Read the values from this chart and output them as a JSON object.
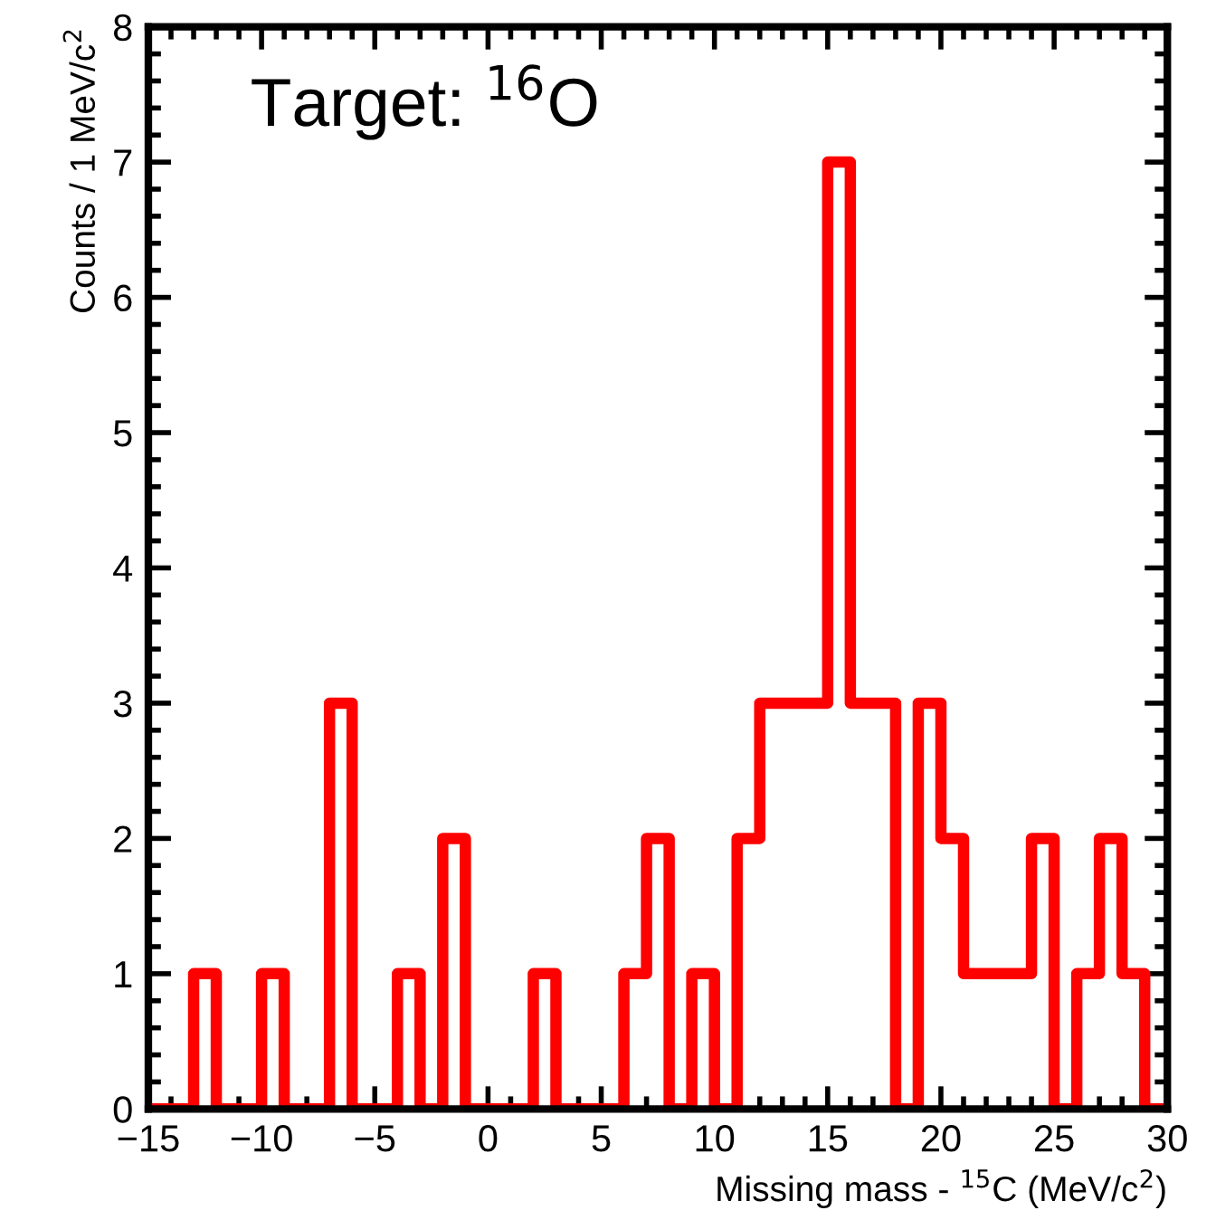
{
  "chart_data": {
    "type": "histogram",
    "xlabel": "Missing mass - $^{15}$C (MeV/c$^{2}$)",
    "ylabel": "Counts / 1 MeV/c$^{2}$",
    "annotations": [
      "Target: $^{16}$O"
    ],
    "bins": [
      -15,
      -14,
      -13,
      -12,
      -11,
      -10,
      -9,
      -8,
      -7,
      -6,
      -5,
      -4,
      -3,
      -2,
      -1,
      0,
      1,
      2,
      3,
      4,
      5,
      6,
      7,
      8,
      9,
      10,
      11,
      12,
      13,
      14,
      15,
      16,
      17,
      18,
      19,
      20,
      21,
      22,
      23,
      24,
      25,
      26,
      27,
      28,
      29,
      30
    ],
    "values": [
      0,
      0,
      1,
      0,
      0,
      1,
      0,
      0,
      3,
      0,
      0,
      1,
      0,
      2,
      0,
      0,
      0,
      1,
      0,
      0,
      0,
      1,
      2,
      0,
      1,
      0,
      2,
      3,
      3,
      3,
      7,
      3,
      3,
      0,
      3,
      2,
      1,
      1,
      1,
      2,
      0,
      1,
      2,
      1,
      0
    ],
    "color": "#ff0000",
    "xlim": [
      -15,
      30
    ],
    "ylim": [
      0,
      8
    ],
    "xticks": [
      -15,
      {
        "value": -14,
        "label": null
      },
      {
        "value": -13,
        "label": null
      },
      {
        "value": -12,
        "label": null
      },
      {
        "value": -11,
        "label": null
      },
      -10,
      {
        "value": -9,
        "label": null
      },
      {
        "value": -8,
        "label": null
      },
      {
        "value": -7,
        "label": null
      },
      {
        "value": -6,
        "label": null
      },
      -5,
      {
        "value": -4,
        "label": null
      },
      {
        "value": -3,
        "label": null
      },
      {
        "value": -2,
        "label": null
      },
      {
        "value": -1,
        "label": null
      },
      0,
      {
        "value": 1,
        "label": null
      },
      {
        "value": 2,
        "label": null
      },
      {
        "value": 3,
        "label": null
      },
      {
        "value": 4,
        "label": null
      },
      5,
      {
        "value": 6,
        "label": null
      },
      {
        "value": 7,
        "label": null
      },
      {
        "value": 8,
        "label": null
      },
      {
        "value": 9,
        "label": null
      },
      10,
      {
        "value": 11,
        "label": null
      },
      {
        "value": 12,
        "label": null
      },
      {
        "value": 13,
        "label": null
      },
      {
        "value": 14,
        "label": null
      },
      15,
      {
        "value": 16,
        "label": null
      },
      {
        "value": 17,
        "label": null
      },
      {
        "value": 18,
        "label": null
      },
      {
        "value": 19,
        "label": null
      },
      20,
      {
        "value": 21,
        "label": null
      },
      {
        "value": 22,
        "label": null
      },
      {
        "value": 23,
        "label": null
      },
      {
        "value": 24,
        "label": null
      },
      25,
      {
        "value": 26,
        "label": null
      },
      {
        "value": 27,
        "label": null
      },
      {
        "value": 28,
        "label": null
      },
      {
        "value": 29,
        "label": null
      },
      30
    ],
    "yticks": [
      0,
      {
        "value": 0.2,
        "label": null
      },
      {
        "value": 0.4,
        "label": null
      },
      {
        "value": 0.6,
        "label": null
      },
      {
        "value": 0.8,
        "label": null
      },
      1,
      {
        "value": 1.2,
        "label": null
      },
      {
        "value": 1.4,
        "label": null
      },
      {
        "value": 1.6,
        "label": null
      },
      {
        "value": 1.8,
        "label": null
      },
      2,
      {
        "value": 2.2,
        "label": null
      },
      {
        "value": 2.4,
        "label": null
      },
      {
        "value": 2.6,
        "label": null
      },
      {
        "value": 2.8,
        "label": null
      },
      3,
      {
        "value": 3.2,
        "label": null
      },
      {
        "value": 3.4,
        "label": null
      },
      {
        "value": 3.6,
        "label": null
      },
      {
        "value": 3.8,
        "label": null
      },
      4,
      {
        "value": 4.2,
        "label": null
      },
      {
        "value": 4.4,
        "label": null
      },
      {
        "value": 4.6,
        "label": null
      },
      {
        "value": 4.8,
        "label": null
      },
      5,
      {
        "value": 5.2,
        "label": null
      },
      {
        "value": 5.4,
        "label": null
      },
      {
        "value": 5.6,
        "label": null
      },
      {
        "value": 5.8,
        "label": null
      },
      6,
      {
        "value": 6.2,
        "label": null
      },
      {
        "value": 6.4,
        "label": null
      },
      {
        "value": 6.6,
        "label": null
      },
      {
        "value": 6.8,
        "label": null
      },
      7,
      {
        "value": 7.2,
        "label": null
      },
      {
        "value": 7.4,
        "label": null
      },
      {
        "value": 7.6,
        "label": null
      },
      {
        "value": 7.8,
        "label": null
      },
      8
    ],
    "grid": false,
    "legend": false
  }
}
